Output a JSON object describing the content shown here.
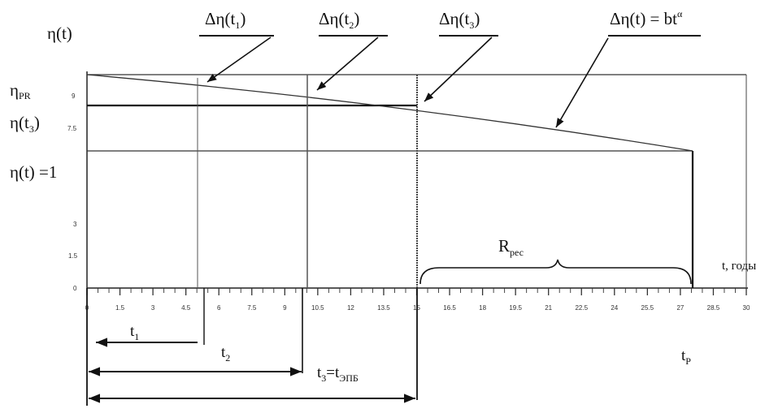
{
  "labels": {
    "y_axis": "η(t)",
    "eta_pr": "η",
    "eta_pr_sub": "PR",
    "eta_t3": "η(t",
    "eta_t3_sub": "3",
    "eta_t3_close": ")",
    "eta_one": "η(t) =1",
    "x_axis": "t, годы",
    "delta1": "Δη(t",
    "delta1_sub": "1",
    "delta1_close": ")",
    "delta2": "Δη(t",
    "delta2_sub": "2",
    "delta2_close": ")",
    "delta3": "Δη(t",
    "delta3_sub": "3",
    "delta3_close": ")",
    "delta_formula": "Δη(t) = bt",
    "delta_formula_sup": "α",
    "r_res": "R",
    "r_res_sub": "рес",
    "t1": "t",
    "t1_sub": "1",
    "t2": "t",
    "t2_sub": "2",
    "t3": "t",
    "t3_sub": "3",
    "t3_eq": "=t",
    "t3_eq_sub": "ЭПБ",
    "tp": "t",
    "tp_sub": "P"
  },
  "y_ticks": [
    "0",
    "1.5",
    "3",
    "7.5",
    "9"
  ],
  "x_ticks": [
    "0",
    "1.5",
    "3",
    "4.5",
    "6",
    "7.5",
    "9",
    "10.5",
    "12",
    "13.5",
    "15",
    "16.5",
    "18",
    "19.5",
    "21",
    "22.5",
    "24",
    "25.5",
    "27",
    "28.5",
    "30"
  ],
  "chart_data": {
    "type": "line",
    "x_range": [
      0,
      30
    ],
    "x_unit": "t, годы",
    "curve": {
      "name": "Δη(t) = bt^α",
      "points": [
        [
          0,
          10.2
        ],
        [
          15,
          8.6
        ],
        [
          27.5,
          6.3
        ]
      ]
    },
    "levels": {
      "eta_pr": 10.2,
      "eta_t3": 8.6,
      "eta_one": 6.3
    },
    "markers": {
      "t1": 5.1,
      "t2": 10.1,
      "t3": 15,
      "tp": 27.5
    }
  }
}
